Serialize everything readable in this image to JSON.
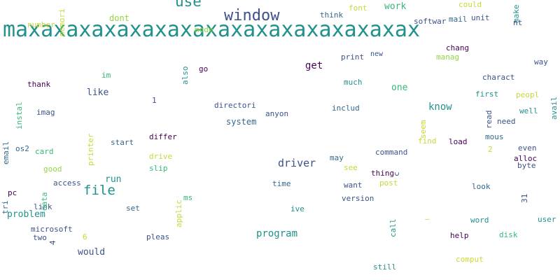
{
  "palette": {
    "dark": "#440154",
    "navy": "#3b528b",
    "blue": "#31688e",
    "teal": "#21918c",
    "green": "#35b779",
    "lime": "#90d743",
    "yellow": "#c8d836"
  },
  "words": [
    {
      "text": "maxaxaxaxaxaxaxaxaxaxaxaxaxaxaxax",
      "color": "#21918c"
    },
    {
      "text": "window",
      "color": "#3b528b"
    },
    {
      "text": "use",
      "color": "#21918c"
    },
    {
      "text": "file",
      "color": "#21918c"
    },
    {
      "text": "driver",
      "color": "#3b528b"
    },
    {
      "text": "get",
      "color": "#440154"
    },
    {
      "text": "program",
      "color": "#21918c"
    },
    {
      "text": "problem",
      "color": "#21918c"
    },
    {
      "text": "know",
      "color": "#21918c"
    },
    {
      "text": "like",
      "color": "#3b528b"
    },
    {
      "text": "one",
      "color": "#35b779"
    },
    {
      "text": "run",
      "color": "#21918c"
    },
    {
      "text": "would",
      "color": "#3b528b"
    },
    {
      "text": "work",
      "color": "#35b779"
    },
    {
      "text": "system",
      "color": "#31688e"
    },
    {
      "text": "dont",
      "color": "#90d743"
    },
    {
      "text": "font",
      "color": "#c8d836"
    },
    {
      "text": "could",
      "color": "#c8d836"
    },
    {
      "text": "think",
      "color": "#31688e"
    },
    {
      "text": "mail",
      "color": "#31688e"
    },
    {
      "text": "unit",
      "color": "#3b528b"
    },
    {
      "text": "softwar",
      "color": "#3b528b"
    },
    {
      "text": "number",
      "color": "#c8d836"
    },
    {
      "text": "mode",
      "color": "#90d743"
    },
    {
      "text": "chang",
      "color": "#440154"
    },
    {
      "text": "manag",
      "color": "#90d743"
    },
    {
      "text": "print",
      "color": "#3b528b"
    },
    {
      "text": "new",
      "color": "#3b528b"
    },
    {
      "text": "way",
      "color": "#3b528b"
    },
    {
      "text": "go",
      "color": "#440154"
    },
    {
      "text": "im",
      "color": "#35b779"
    },
    {
      "text": "much",
      "color": "#21918c"
    },
    {
      "text": "charact",
      "color": "#3b528b"
    },
    {
      "text": "thank",
      "color": "#440154"
    },
    {
      "text": "first",
      "color": "#21918c"
    },
    {
      "text": "peopl",
      "color": "#c8d836"
    },
    {
      "text": "well",
      "color": "#21918c"
    },
    {
      "text": "need",
      "color": "#3b528b"
    },
    {
      "text": "directori",
      "color": "#3b528b"
    },
    {
      "text": "includ",
      "color": "#31688e"
    },
    {
      "text": "anyon",
      "color": "#3b528b"
    },
    {
      "text": "imag",
      "color": "#3b528b"
    },
    {
      "text": "1",
      "color": "#3b528b"
    },
    {
      "text": "start",
      "color": "#31688e"
    },
    {
      "text": "differ",
      "color": "#440154"
    },
    {
      "text": "find",
      "color": "#c8d836"
    },
    {
      "text": "load",
      "color": "#440154"
    },
    {
      "text": "mous",
      "color": "#31688e"
    },
    {
      "text": "even",
      "color": "#3b528b"
    },
    {
      "text": "alloc",
      "color": "#440154"
    },
    {
      "text": "byte",
      "color": "#3b528b"
    },
    {
      "text": "2",
      "color": "#c8d836"
    },
    {
      "text": "os2",
      "color": "#31688e"
    },
    {
      "text": "card",
      "color": "#35b779"
    },
    {
      "text": "drive",
      "color": "#c8d836"
    },
    {
      "text": "slip",
      "color": "#35b779"
    },
    {
      "text": "command",
      "color": "#3b528b"
    },
    {
      "text": "may",
      "color": "#31688e"
    },
    {
      "text": "see",
      "color": "#c8d836"
    },
    {
      "text": "thing",
      "color": "#440154"
    },
    {
      "text": "post",
      "color": "#c8d836"
    },
    {
      "text": "good",
      "color": "#90d743"
    },
    {
      "text": "access",
      "color": "#3b528b"
    },
    {
      "text": "time",
      "color": "#31688e"
    },
    {
      "text": "want",
      "color": "#3b528b"
    },
    {
      "text": "look",
      "color": "#31688e"
    },
    {
      "text": "pc",
      "color": "#440154"
    },
    {
      "text": "ms",
      "color": "#35b779"
    },
    {
      "text": "version",
      "color": "#3b528b"
    },
    {
      "text": "link",
      "color": "#3b528b"
    },
    {
      "text": "set",
      "color": "#31688e"
    },
    {
      "text": "ive",
      "color": "#21918c"
    },
    {
      "text": "microsoft",
      "color": "#3b528b"
    },
    {
      "text": "two",
      "color": "#3b528b"
    },
    {
      "text": "6",
      "color": "#c8d836"
    },
    {
      "text": "pleas",
      "color": "#3b528b"
    },
    {
      "text": "—",
      "color": "#c8d836"
    },
    {
      "text": "word",
      "color": "#21918c"
    },
    {
      "text": "user",
      "color": "#21918c"
    },
    {
      "text": "help",
      "color": "#440154"
    },
    {
      "text": "disk",
      "color": "#35b779"
    },
    {
      "text": "comput",
      "color": "#c8d836"
    },
    {
      "text": "still",
      "color": "#21918c"
    },
    {
      "text": "memori",
      "color": "#c8d836"
    },
    {
      "text": "make",
      "color": "#21918c"
    },
    {
      "text": "nt",
      "color": "#3b528b"
    },
    {
      "text": "also",
      "color": "#21918c"
    },
    {
      "text": "instal",
      "color": "#35b779"
    },
    {
      "text": "printer",
      "color": "#c8d836"
    },
    {
      "text": "email",
      "color": "#31688e"
    },
    {
      "text": "seem",
      "color": "#c8d836"
    },
    {
      "text": "read",
      "color": "#3b528b"
    },
    {
      "text": "avail",
      "color": "#21918c"
    },
    {
      "text": "31",
      "color": "#3b528b"
    },
    {
      "text": "c",
      "color": "#3b528b"
    },
    {
      "text": "data",
      "color": "#35b779"
    },
    {
      "text": "4",
      "color": "#3b528b"
    },
    {
      "text": "applic",
      "color": "#c8d836"
    },
    {
      "text": "tri",
      "color": "#31688e"
    },
    {
      "text": "call",
      "color": "#21918c"
    }
  ]
}
